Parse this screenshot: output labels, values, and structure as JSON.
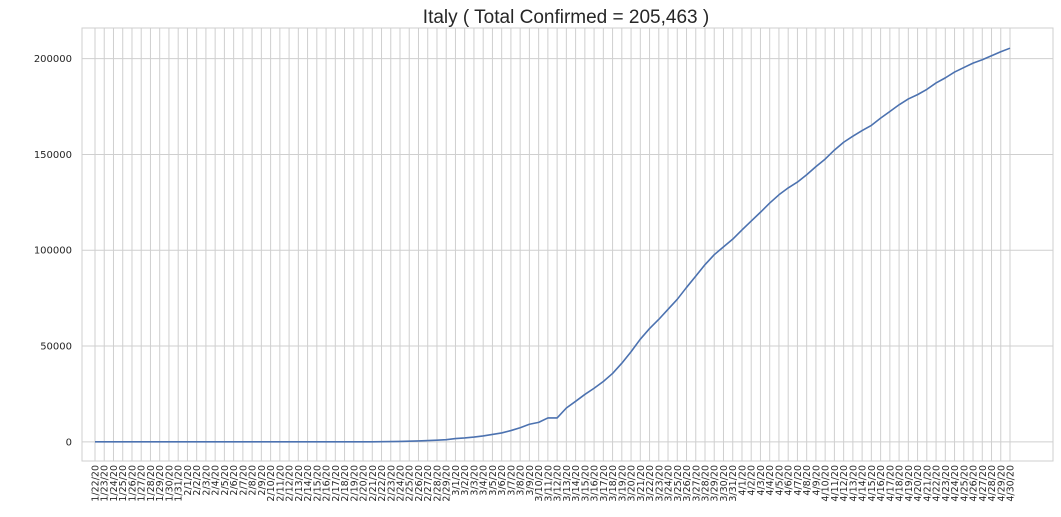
{
  "chart_data": {
    "type": "line",
    "title": "Italy ( Total Confirmed = 205,463 )",
    "xlabel": "",
    "ylabel": "",
    "ylim": [
      -10000,
      216000
    ],
    "yticks": [
      0,
      50000,
      100000,
      150000,
      200000
    ],
    "ytick_labels": [
      "0",
      "50000",
      "100000",
      "150000",
      "200000"
    ],
    "grid": true,
    "line_color": "#4c72b0",
    "categories": [
      "1/22/20",
      "1/23/20",
      "1/24/20",
      "1/25/20",
      "1/26/20",
      "1/27/20",
      "1/28/20",
      "1/29/20",
      "1/30/20",
      "1/31/20",
      "2/1/20",
      "2/2/20",
      "2/3/20",
      "2/4/20",
      "2/5/20",
      "2/6/20",
      "2/7/20",
      "2/8/20",
      "2/9/20",
      "2/10/20",
      "2/11/20",
      "2/12/20",
      "2/13/20",
      "2/14/20",
      "2/15/20",
      "2/16/20",
      "2/17/20",
      "2/18/20",
      "2/19/20",
      "2/20/20",
      "2/21/20",
      "2/22/20",
      "2/23/20",
      "2/24/20",
      "2/25/20",
      "2/26/20",
      "2/27/20",
      "2/28/20",
      "2/29/20",
      "3/1/20",
      "3/2/20",
      "3/3/20",
      "3/4/20",
      "3/5/20",
      "3/6/20",
      "3/7/20",
      "3/8/20",
      "3/9/20",
      "3/10/20",
      "3/11/20",
      "3/12/20",
      "3/13/20",
      "3/14/20",
      "3/15/20",
      "3/16/20",
      "3/17/20",
      "3/18/20",
      "3/19/20",
      "3/20/20",
      "3/21/20",
      "3/22/20",
      "3/23/20",
      "3/24/20",
      "3/25/20",
      "3/26/20",
      "3/27/20",
      "3/28/20",
      "3/29/20",
      "3/30/20",
      "3/31/20",
      "4/1/20",
      "4/2/20",
      "4/3/20",
      "4/4/20",
      "4/5/20",
      "4/6/20",
      "4/7/20",
      "4/8/20",
      "4/9/20",
      "4/10/20",
      "4/11/20",
      "4/12/20",
      "4/13/20",
      "4/14/20",
      "4/15/20",
      "4/16/20",
      "4/17/20",
      "4/18/20",
      "4/19/20",
      "4/20/20",
      "4/21/20",
      "4/22/20",
      "4/23/20",
      "4/24/20",
      "4/25/20",
      "4/26/20",
      "4/27/20",
      "4/28/20",
      "4/29/20",
      "4/30/20"
    ],
    "series": [
      {
        "values": [
          0,
          0,
          0,
          0,
          0,
          0,
          0,
          0,
          0,
          2,
          2,
          2,
          2,
          2,
          2,
          2,
          3,
          3,
          3,
          3,
          3,
          3,
          3,
          3,
          3,
          3,
          3,
          3,
          3,
          3,
          20,
          62,
          155,
          229,
          322,
          453,
          655,
          888,
          1128,
          1694,
          2036,
          2502,
          3089,
          3858,
          4636,
          5883,
          7375,
          9172,
          10149,
          12462,
          12462,
          17660,
          21157,
          24747,
          27980,
          31506,
          35713,
          41035,
          47021,
          53578,
          59138,
          63927,
          69176,
          74386,
          80589,
          86498,
          92472,
          97689,
          101739,
          105792,
          110574,
          115242,
          119827,
          124632,
          128948,
          132547,
          135586,
          139422,
          143626,
          147577,
          152271,
          156363,
          159516,
          162488,
          165155,
          168941,
          172434,
          175925,
          178972,
          181228,
          183957,
          187327,
          189973,
          192994,
          195351,
          197675,
          199414,
          201505,
          203591,
          205463
        ]
      }
    ]
  }
}
